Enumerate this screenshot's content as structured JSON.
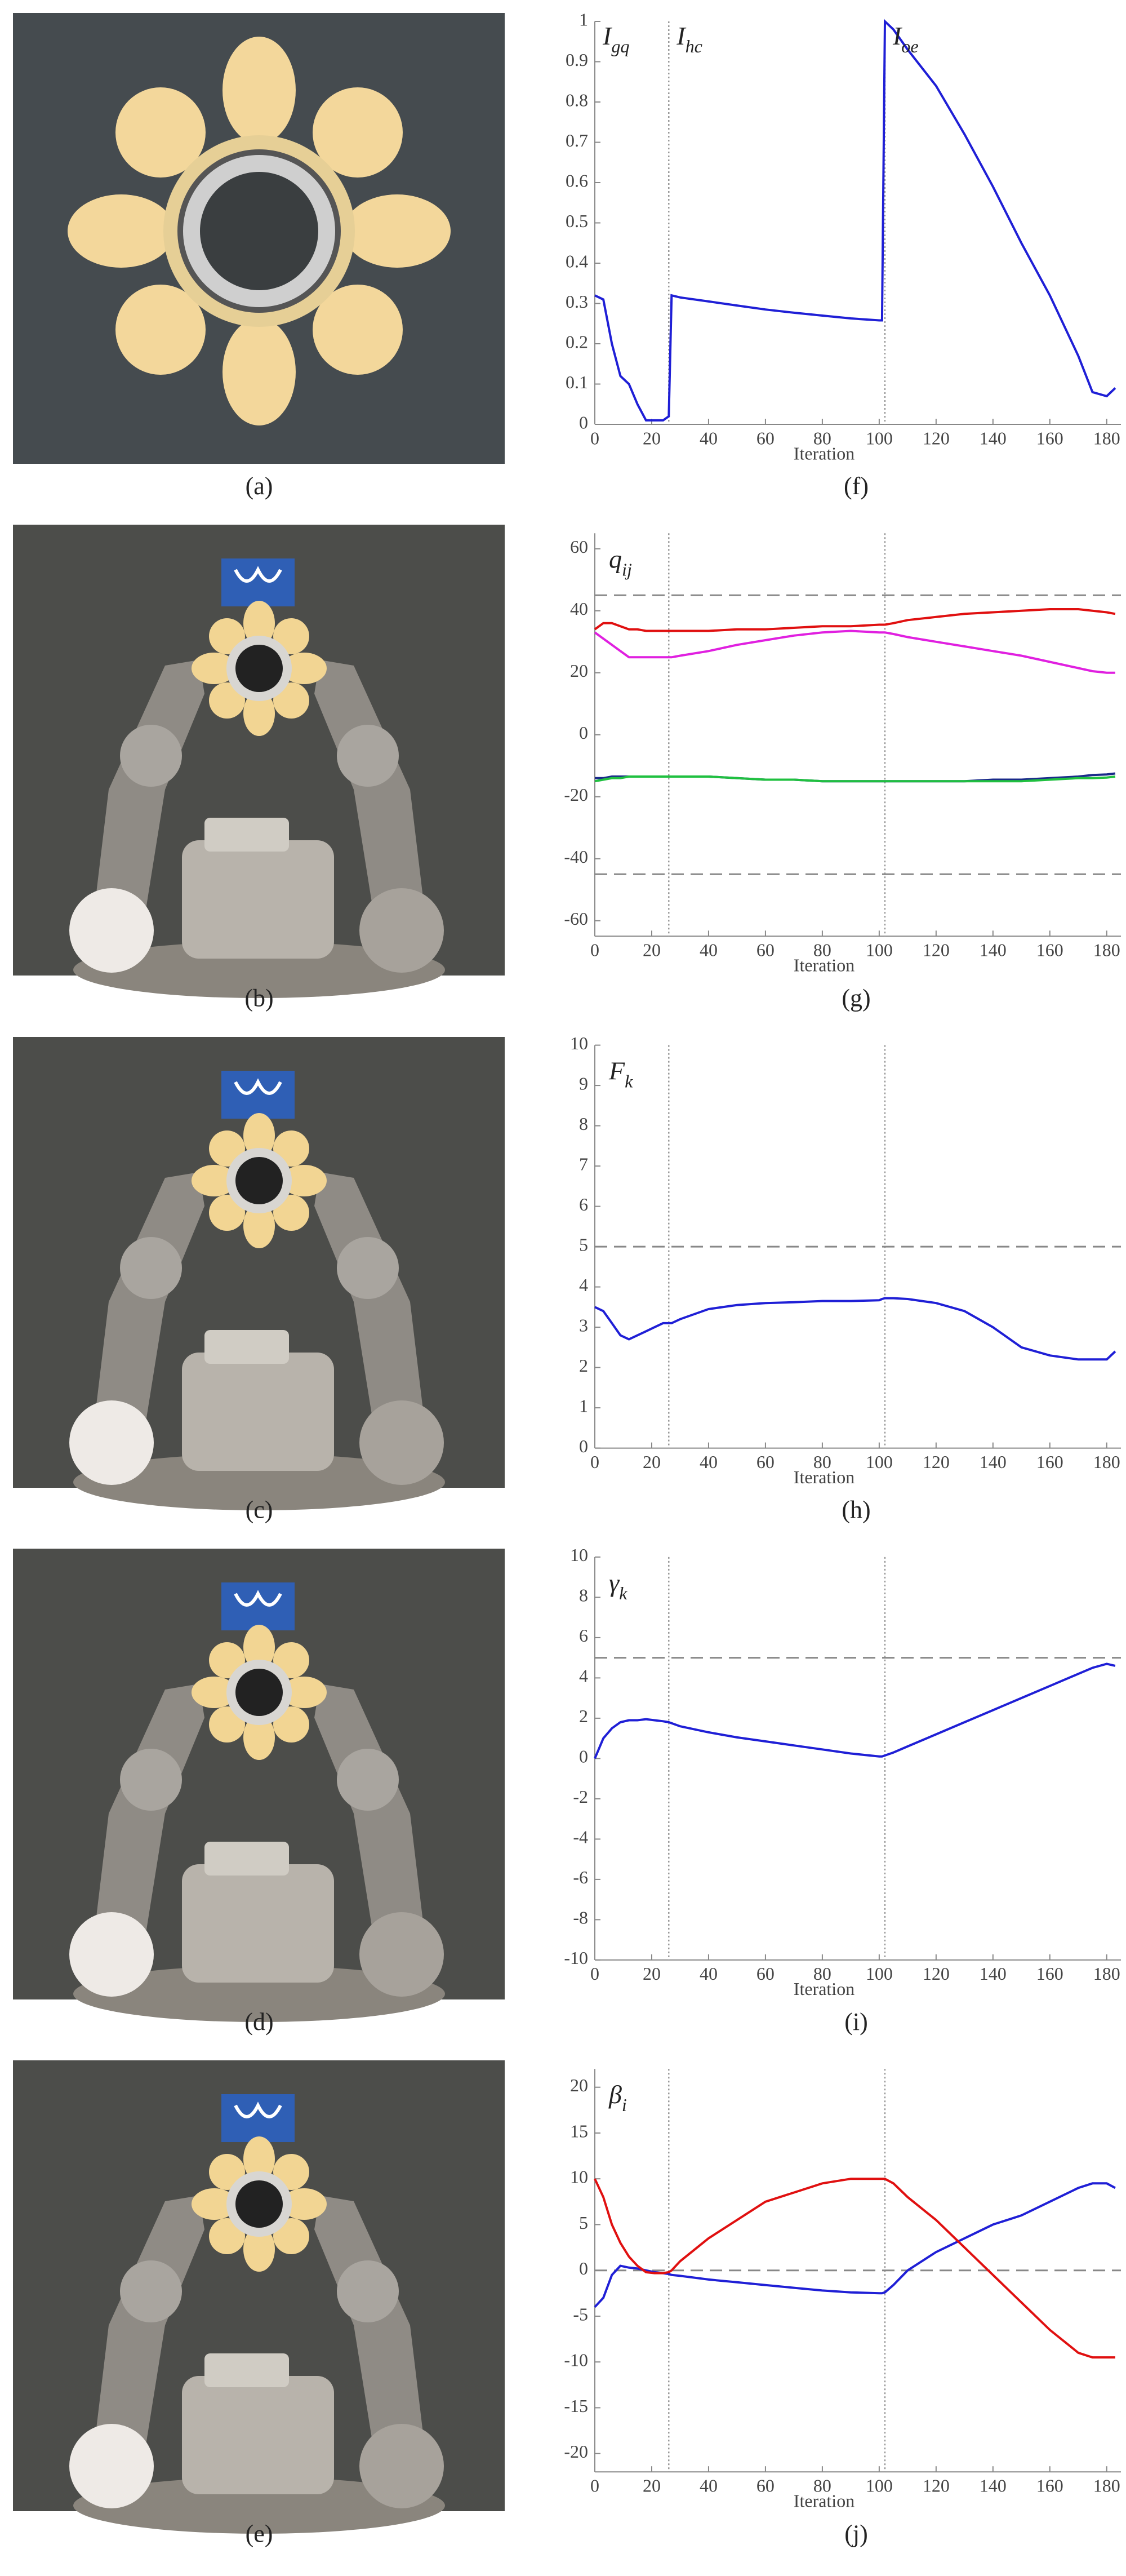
{
  "photo_labels": [
    "(a)",
    "(b)",
    "(c)",
    "(d)",
    "(e)"
  ],
  "chart_data": [
    {
      "type": "line",
      "label": "(f)",
      "xlabel": "Iteration",
      "annotations": [
        {
          "text": "I",
          "subscript": "gq"
        },
        {
          "text": "I",
          "subscript": "hc"
        },
        {
          "text": "I",
          "subscript": "oe"
        }
      ],
      "xlim": [
        0,
        185
      ],
      "xticks": [
        0,
        20,
        40,
        60,
        80,
        100,
        120,
        140,
        160,
        180
      ],
      "ylim": [
        0,
        1
      ],
      "yticks": [
        0,
        0.1,
        0.2,
        0.3,
        0.4,
        0.5,
        0.6,
        0.7,
        0.8,
        0.9,
        1
      ],
      "vlines": [
        26,
        102
      ],
      "hlines": [],
      "x": [
        0,
        3,
        6,
        9,
        12,
        15,
        18,
        21,
        24,
        26,
        27,
        30,
        40,
        50,
        60,
        70,
        80,
        90,
        100,
        101,
        102,
        105,
        110,
        120,
        130,
        140,
        150,
        160,
        170,
        175,
        180,
        183
      ],
      "series": [
        {
          "color": "#1f1fd6",
          "values": [
            0.32,
            0.31,
            0.2,
            0.12,
            0.1,
            0.05,
            0.01,
            0.01,
            0.01,
            0.02,
            0.32,
            0.315,
            0.305,
            0.295,
            0.285,
            0.277,
            0.27,
            0.263,
            0.258,
            0.258,
            1.0,
            0.98,
            0.93,
            0.84,
            0.72,
            0.59,
            0.45,
            0.32,
            0.17,
            0.08,
            0.07,
            0.09
          ]
        }
      ]
    },
    {
      "type": "line",
      "label": "(g)",
      "xlabel": "Iteration",
      "ylabel": {
        "text": "q",
        "subscript": "ij"
      },
      "xlim": [
        0,
        185
      ],
      "xticks": [
        0,
        20,
        40,
        60,
        80,
        100,
        120,
        140,
        160,
        180
      ],
      "ylim": [
        -65,
        65
      ],
      "yticks": [
        -60,
        -40,
        -20,
        0,
        20,
        40,
        60
      ],
      "vlines": [
        26,
        102
      ],
      "hlines": [
        45,
        -45
      ],
      "x": [
        0,
        3,
        6,
        9,
        12,
        15,
        18,
        21,
        24,
        26,
        27,
        30,
        40,
        50,
        60,
        70,
        80,
        90,
        100,
        101,
        102,
        105,
        110,
        120,
        130,
        140,
        150,
        160,
        170,
        175,
        180,
        183
      ],
      "series": [
        {
          "color": "#e01010",
          "values": [
            34,
            36,
            36,
            35,
            34,
            34,
            33.5,
            33.5,
            33.5,
            33.5,
            33.5,
            33.5,
            33.5,
            34,
            34,
            34.5,
            35,
            35,
            35.5,
            35.5,
            35.5,
            36,
            37,
            38,
            39,
            39.5,
            40,
            40.5,
            40.5,
            40,
            39.5,
            39
          ]
        },
        {
          "color": "#e020e0",
          "values": [
            33,
            31,
            29,
            27,
            25,
            25,
            25,
            25,
            25,
            25,
            25,
            25.5,
            27,
            29,
            30.5,
            32,
            33,
            33.5,
            33,
            33,
            33,
            32.5,
            31.5,
            30,
            28.5,
            27,
            25.5,
            23.5,
            21.5,
            20.5,
            20,
            20
          ]
        },
        {
          "color": "#1a2a8a",
          "values": [
            -14,
            -14,
            -13.5,
            -13.5,
            -13.5,
            -13.5,
            -13.5,
            -13.5,
            -13.5,
            -13.5,
            -13.5,
            -13.5,
            -13.5,
            -14,
            -14.5,
            -14.5,
            -15,
            -15,
            -15,
            -15,
            -15,
            -15,
            -15,
            -15,
            -15,
            -14.5,
            -14.5,
            -14,
            -13.5,
            -13,
            -12.8,
            -12.5
          ]
        },
        {
          "color": "#20c040",
          "values": [
            -15,
            -14.5,
            -14,
            -14,
            -13.5,
            -13.5,
            -13.5,
            -13.5,
            -13.5,
            -13.5,
            -13.5,
            -13.5,
            -13.5,
            -14,
            -14.5,
            -14.5,
            -15,
            -15,
            -15,
            -15,
            -15,
            -15,
            -15,
            -15,
            -15,
            -15,
            -15,
            -14.5,
            -14,
            -14,
            -13.8,
            -13.5
          ]
        }
      ]
    },
    {
      "type": "line",
      "label": "(h)",
      "xlabel": "Iteration",
      "ylabel": {
        "text": "F",
        "subscript": "k"
      },
      "xlim": [
        0,
        185
      ],
      "xticks": [
        0,
        20,
        40,
        60,
        80,
        100,
        120,
        140,
        160,
        180
      ],
      "ylim": [
        0,
        10
      ],
      "yticks": [
        0,
        1,
        2,
        3,
        4,
        5,
        6,
        7,
        8,
        9,
        10
      ],
      "vlines": [
        26,
        102
      ],
      "hlines": [
        5
      ],
      "x": [
        0,
        3,
        6,
        9,
        12,
        15,
        18,
        21,
        24,
        26,
        27,
        30,
        40,
        50,
        60,
        70,
        80,
        90,
        100,
        101,
        102,
        105,
        110,
        120,
        130,
        140,
        150,
        160,
        170,
        175,
        180,
        183
      ],
      "series": [
        {
          "color": "#1f1fd6",
          "values": [
            3.5,
            3.4,
            3.1,
            2.8,
            2.7,
            2.8,
            2.9,
            3.0,
            3.1,
            3.1,
            3.1,
            3.2,
            3.45,
            3.55,
            3.6,
            3.62,
            3.65,
            3.65,
            3.67,
            3.7,
            3.72,
            3.72,
            3.7,
            3.6,
            3.4,
            3.0,
            2.5,
            2.3,
            2.2,
            2.2,
            2.2,
            2.4
          ]
        }
      ]
    },
    {
      "type": "line",
      "label": "(i)",
      "xlabel": "Iteration",
      "ylabel": {
        "text": "γ",
        "subscript": "k"
      },
      "xlim": [
        0,
        185
      ],
      "xticks": [
        0,
        20,
        40,
        60,
        80,
        100,
        120,
        140,
        160,
        180
      ],
      "ylim": [
        -10,
        10
      ],
      "yticks": [
        -10,
        -8,
        -6,
        -4,
        -2,
        0,
        2,
        4,
        6,
        8,
        10
      ],
      "vlines": [
        26,
        102
      ],
      "hlines": [
        5
      ],
      "x": [
        0,
        3,
        6,
        9,
        12,
        15,
        18,
        21,
        24,
        26,
        27,
        30,
        40,
        50,
        60,
        70,
        80,
        90,
        100,
        101,
        102,
        105,
        110,
        120,
        130,
        140,
        150,
        160,
        170,
        175,
        180,
        183
      ],
      "series": [
        {
          "color": "#1f1fd6",
          "values": [
            0,
            1,
            1.5,
            1.8,
            1.9,
            1.9,
            1.95,
            1.9,
            1.85,
            1.8,
            1.75,
            1.6,
            1.3,
            1.05,
            0.85,
            0.65,
            0.45,
            0.25,
            0.1,
            0.1,
            0.15,
            0.3,
            0.6,
            1.2,
            1.8,
            2.4,
            3.0,
            3.6,
            4.2,
            4.5,
            4.7,
            4.6
          ]
        }
      ]
    },
    {
      "type": "line",
      "label": "(j)",
      "xlabel": "Iteration",
      "ylabel": {
        "text": "β",
        "subscript": "i"
      },
      "xlim": [
        0,
        185
      ],
      "xticks": [
        0,
        20,
        40,
        60,
        80,
        100,
        120,
        140,
        160,
        180
      ],
      "ylim": [
        -22,
        22
      ],
      "yticks": [
        -20,
        -15,
        -10,
        -5,
        0,
        5,
        10,
        15,
        20
      ],
      "vlines": [
        26,
        102
      ],
      "hlines": [
        0
      ],
      "x": [
        0,
        3,
        6,
        9,
        12,
        15,
        18,
        21,
        24,
        26,
        27,
        30,
        40,
        50,
        60,
        70,
        80,
        90,
        100,
        101,
        102,
        105,
        110,
        120,
        130,
        140,
        150,
        160,
        170,
        175,
        180,
        183
      ],
      "series": [
        {
          "color": "#1f1fd6",
          "values": [
            -4,
            -3,
            -0.5,
            0.5,
            0.3,
            0.2,
            0,
            -0.2,
            -0.3,
            -0.4,
            -0.5,
            -0.6,
            -1,
            -1.3,
            -1.6,
            -1.9,
            -2.2,
            -2.4,
            -2.5,
            -2.5,
            -2.4,
            -1.6,
            0,
            2,
            3.5,
            5,
            6,
            7.5,
            9,
            9.5,
            9.5,
            9
          ]
        },
        {
          "color": "#e01010",
          "values": [
            10,
            8,
            5,
            3,
            1.5,
            0.5,
            -0.2,
            -0.3,
            -0.3,
            -0.2,
            0,
            1,
            3.5,
            5.5,
            7.5,
            8.5,
            9.5,
            10,
            10,
            10,
            10,
            9.5,
            8,
            5.5,
            2.5,
            -0.5,
            -3.5,
            -6.5,
            -9,
            -9.5,
            -9.5,
            -9.5
          ]
        }
      ]
    }
  ]
}
